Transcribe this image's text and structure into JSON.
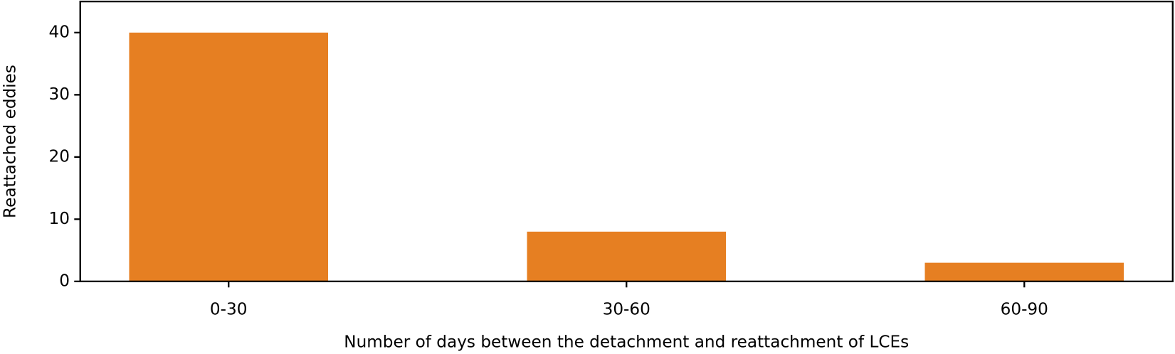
{
  "chart_data": {
    "type": "bar",
    "x_label": "Number of days between the detachment and reattachment of LCEs",
    "y_label": "Reattached eddies",
    "categories": [
      "0-30",
      "30-60",
      "60-90"
    ],
    "values": [
      40,
      8,
      3
    ],
    "color": "#e67f22",
    "ylim": [
      0,
      45
    ],
    "yticks": [
      0,
      10,
      20,
      30,
      40
    ],
    "grid": false
  }
}
